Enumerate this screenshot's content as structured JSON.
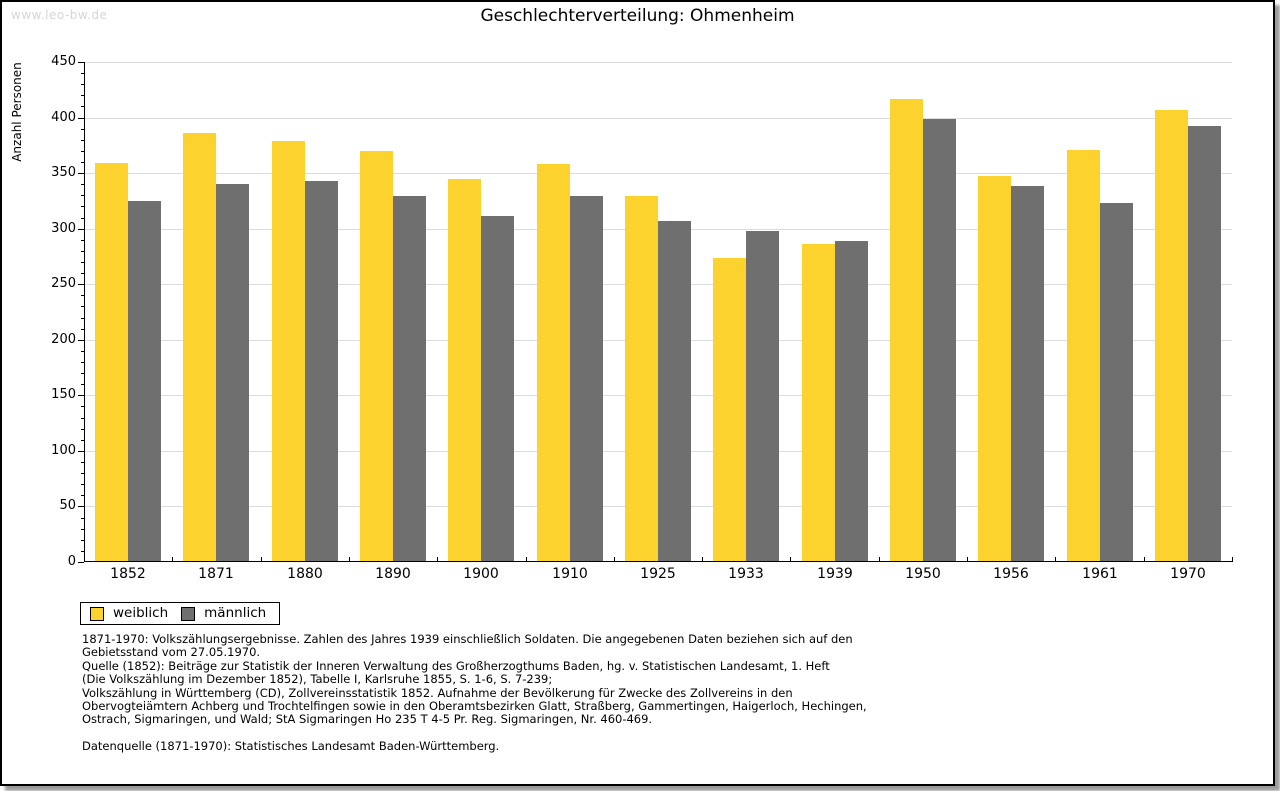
{
  "watermark": "www.leo-bw.de",
  "title": "Geschlechterverteilung: Ohmenheim",
  "chart_data": {
    "type": "bar",
    "title": "Geschlechterverteilung: Ohmenheim",
    "categories": [
      "1852",
      "1871",
      "1880",
      "1890",
      "1900",
      "1910",
      "1925",
      "1933",
      "1939",
      "1950",
      "1956",
      "1961",
      "1970"
    ],
    "series": [
      {
        "name": "weiblich",
        "color": "#FCD32E",
        "values": [
          359,
          386,
          379,
          370,
          345,
          358,
          329,
          274,
          286,
          417,
          347,
          371,
          407
        ]
      },
      {
        "name": "männlich",
        "color": "#6F6F6F",
        "values": [
          325,
          340,
          343,
          329,
          311,
          329,
          307,
          298,
          289,
          399,
          338,
          323,
          392
        ]
      }
    ],
    "xlabel": "",
    "ylabel": "Anzahl Personen",
    "ylim": [
      0,
      450
    ],
    "ytick_step": 50,
    "minor_tick_step": 10,
    "grid": true,
    "legend_position": "bottom-left"
  },
  "colors": {
    "gridline": "#dcdcdc",
    "axis": "#000000",
    "watermark": "#d6d6d6",
    "background": "#ffffff"
  },
  "notes": {
    "lines": [
      "1871-1970: Volkszählungsergebnisse. Zahlen des Jahres 1939 einschließlich Soldaten. Die angegebenen Daten beziehen sich auf den",
      "Gebietsstand vom 27.05.1970.",
      "Quelle (1852): Beiträge zur Statistik der Inneren Verwaltung des Großherzogthums Baden, hg. v. Statistischen Landesamt, 1. Heft",
      "(Die Volkszählung im Dezember 1852), Tabelle I, Karlsruhe 1855, S. 1-6, S. 7-239;",
      "Volkszählung in Württemberg (CD), Zollvereinsstatistik 1852. Aufnahme der Bevölkerung für Zwecke des Zollvereins in den",
      "Obervogteiämtern Achberg und Trochtelfingen sowie in den Oberamtsbezirken Glatt, Straßberg, Gammertingen, Haigerloch, Hechingen,",
      "Ostrach, Sigmaringen, und Wald; StA Sigmaringen Ho 235 T 4-5 Pr. Reg. Sigmaringen, Nr. 460-469.",
      "",
      "Datenquelle (1871-1970): Statistisches Landesamt Baden-Württemberg."
    ]
  }
}
